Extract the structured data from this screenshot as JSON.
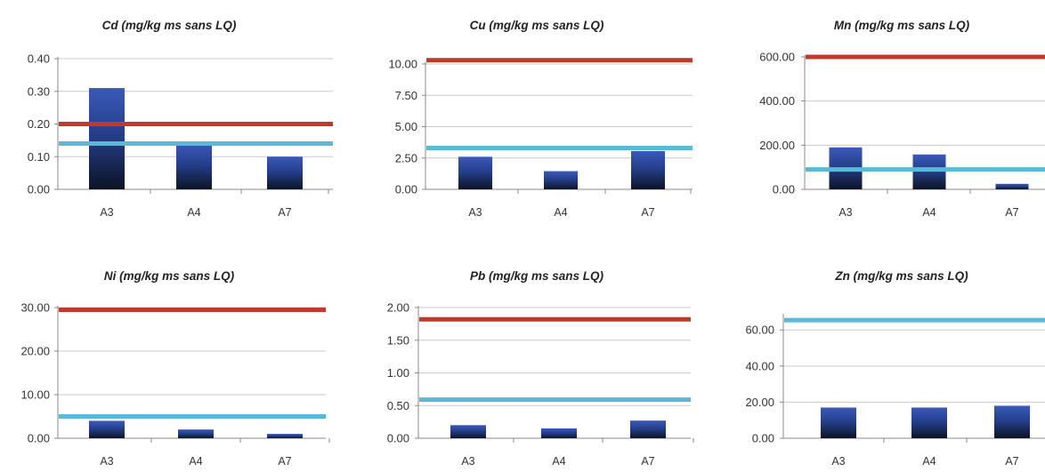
{
  "chart_data": [
    {
      "type": "bar",
      "title": "Cd (mg/kg ms sans LQ)",
      "categories": [
        "A3",
        "A4",
        "A7"
      ],
      "values": [
        0.31,
        0.14,
        0.1
      ],
      "yticks": [
        "0.00",
        "0.10",
        "0.20",
        "0.30",
        "0.40"
      ],
      "ylim": [
        0,
        0.4
      ],
      "reference_lines": [
        {
          "value": 0.2,
          "color": "#c0392b"
        },
        {
          "value": 0.14,
          "color": "#5bb8d6"
        }
      ]
    },
    {
      "type": "bar",
      "title": "Cu (mg/kg ms sans LQ)",
      "categories": [
        "A3",
        "A4",
        "A7"
      ],
      "values": [
        2.6,
        1.45,
        3.05
      ],
      "yticks": [
        "0.00",
        "2.50",
        "5.00",
        "7.50",
        "10.00"
      ],
      "ylim": [
        0,
        10
      ],
      "reference_lines": [
        {
          "value": 10.3,
          "color": "#c0392b"
        },
        {
          "value": 3.3,
          "color": "#5bb8d6"
        }
      ]
    },
    {
      "type": "bar",
      "title": "Mn (mg/kg ms sans LQ)",
      "categories": [
        "A3",
        "A4",
        "A7"
      ],
      "values": [
        190,
        158,
        25
      ],
      "yticks": [
        "0.00",
        "200.00",
        "400.00",
        "600.00"
      ],
      "ylim": [
        0,
        600
      ],
      "reference_lines": [
        {
          "value": 600,
          "color": "#c0392b"
        },
        {
          "value": 90,
          "color": "#5bb8d6"
        }
      ]
    },
    {
      "type": "bar",
      "title": "Ni (mg/kg ms sans LQ)",
      "categories": [
        "A3",
        "A4",
        "A7"
      ],
      "values": [
        4.0,
        2.0,
        1.0
      ],
      "yticks": [
        "0.00",
        "10.00",
        "20.00",
        "30.00"
      ],
      "ylim": [
        0,
        30
      ],
      "reference_lines": [
        {
          "value": 29.5,
          "color": "#c0392b"
        },
        {
          "value": 5.0,
          "color": "#5bb8d6"
        }
      ]
    },
    {
      "type": "bar",
      "title": "Pb (mg/kg ms sans LQ)",
      "categories": [
        "A3",
        "A4",
        "A7"
      ],
      "values": [
        0.2,
        0.15,
        0.27
      ],
      "yticks": [
        "0.00",
        "0.50",
        "1.00",
        "1.50",
        "2.00"
      ],
      "ylim": [
        0,
        2.0
      ],
      "reference_lines": [
        {
          "value": 1.82,
          "color": "#c0392b"
        },
        {
          "value": 0.59,
          "color": "#5bb8d6"
        }
      ]
    },
    {
      "type": "bar",
      "title": "Zn (mg/kg ms sans LQ)",
      "categories": [
        "A3",
        "A4",
        "A7"
      ],
      "values": [
        17,
        17,
        18
      ],
      "yticks": [
        "0.00",
        "20.00",
        "40.00",
        "60.00"
      ],
      "ylim": [
        0,
        68
      ],
      "reference_lines": [
        {
          "value": 65.5,
          "color": "#5bb8d6"
        }
      ]
    }
  ]
}
